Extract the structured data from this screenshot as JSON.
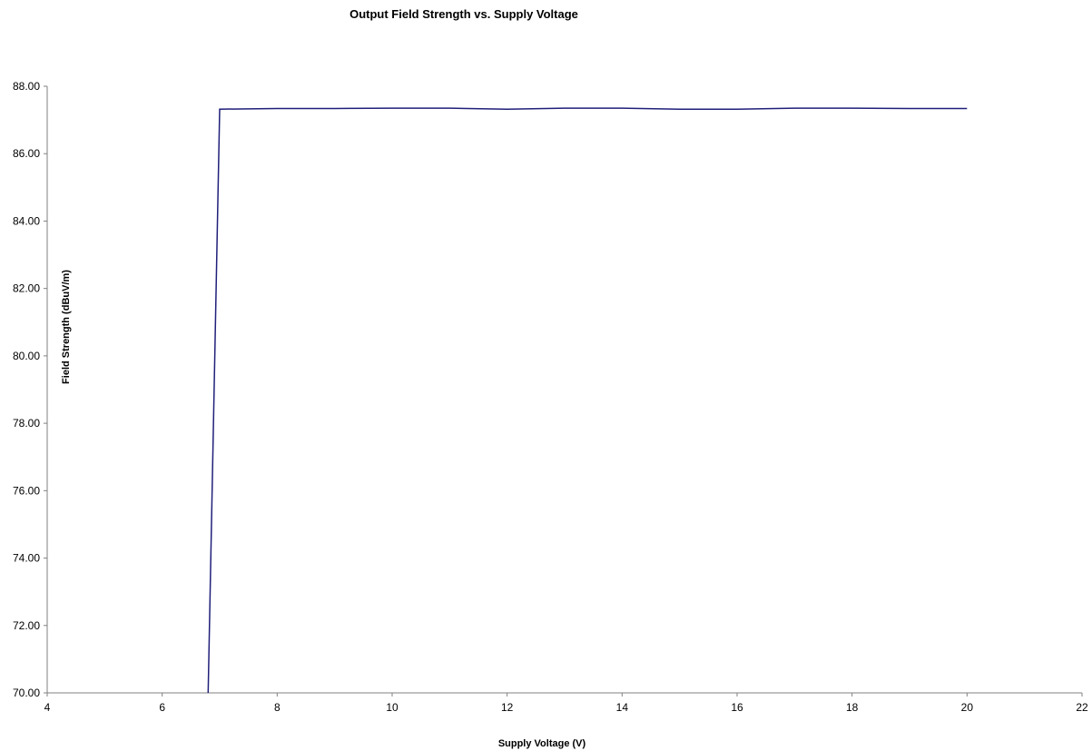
{
  "chart_data": {
    "type": "line",
    "title": "Output Field Strength vs. Supply Voltage",
    "xlabel": "Supply Voltage (V)",
    "ylabel": "Field Strength (dBuV/m)",
    "xlim": [
      4,
      22
    ],
    "ylim": [
      70,
      88
    ],
    "xticks": [
      "4",
      "6",
      "8",
      "10",
      "12",
      "14",
      "16",
      "18",
      "20",
      "22"
    ],
    "yticks": [
      "70.00",
      "72.00",
      "74.00",
      "76.00",
      "78.00",
      "80.00",
      "82.00",
      "84.00",
      "86.00",
      "88.00"
    ],
    "grid": false,
    "legend": "none",
    "series": [
      {
        "color": "#1f1f7a",
        "x": [
          6.8,
          7,
          8,
          9,
          10,
          11,
          12,
          13,
          14,
          15,
          16,
          17,
          18,
          19,
          20
        ],
        "y": [
          70.0,
          87.32,
          87.34,
          87.34,
          87.35,
          87.35,
          87.32,
          87.35,
          87.35,
          87.32,
          87.32,
          87.35,
          87.35,
          87.34,
          87.34
        ]
      }
    ]
  }
}
